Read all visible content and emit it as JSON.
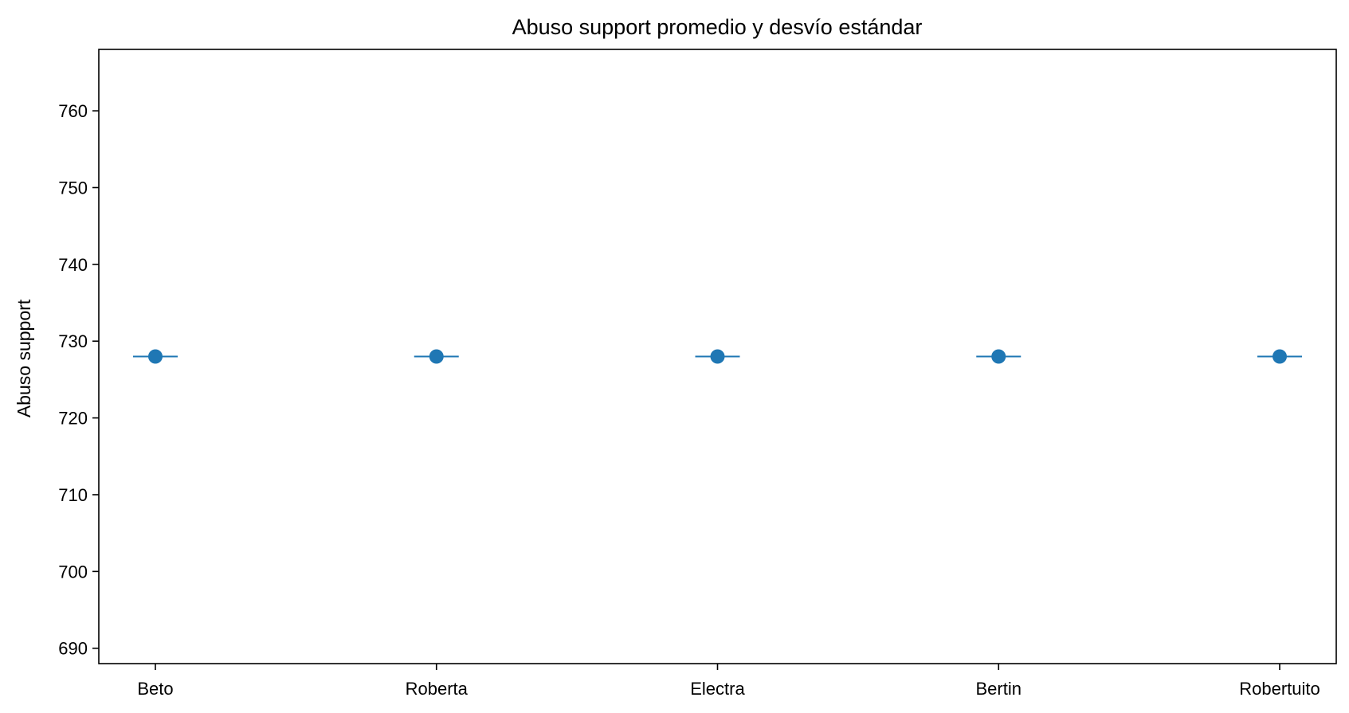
{
  "chart_data": {
    "type": "scatter",
    "title": "Abuso support promedio y desvío estándar",
    "xlabel": "",
    "ylabel": "Abuso support",
    "categories": [
      "Beto",
      "Roberta",
      "Electra",
      "Bertin",
      "Robertuito"
    ],
    "series": [
      {
        "values": [
          728,
          728,
          728,
          728,
          728
        ],
        "std": [
          0,
          0,
          0,
          0,
          0
        ]
      }
    ],
    "ylim": [
      688,
      768
    ],
    "yticks": [
      690,
      700,
      710,
      720,
      730,
      740,
      750,
      760
    ],
    "grid": false,
    "legend": "none",
    "colors": {
      "series": "#1f77b4",
      "axes": "#000000",
      "background": "#ffffff"
    }
  }
}
